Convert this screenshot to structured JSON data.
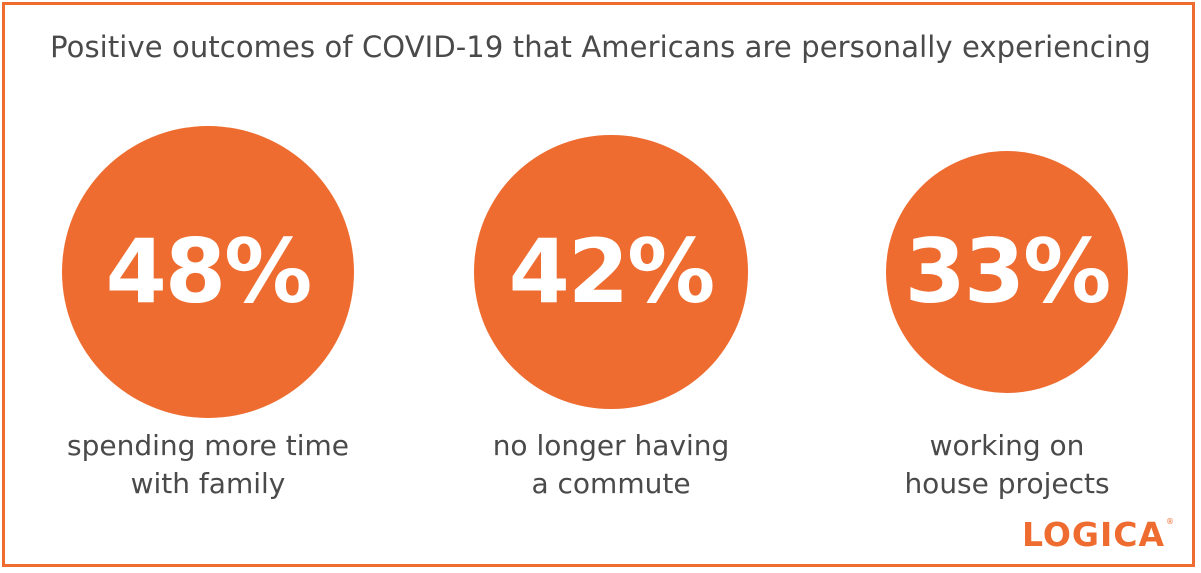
{
  "colors": {
    "accent": "#ef6c30",
    "text": "#4a4a4a",
    "number": "#ffffff"
  },
  "chart_data": {
    "type": "bubble-stat",
    "title": "Positive outcomes of COVID-19 that Americans are personally experiencing",
    "unit": "%",
    "items": [
      {
        "value": 48,
        "label": "48%",
        "caption_lines": [
          "spending more time",
          "with family"
        ]
      },
      {
        "value": 42,
        "label": "42%",
        "caption_lines": [
          "no longer having",
          "a commute"
        ]
      },
      {
        "value": 33,
        "label": "33%",
        "caption_lines": [
          "working on",
          "house projects"
        ]
      }
    ]
  },
  "logo": {
    "text": "LOGICA",
    "mark": "®"
  }
}
